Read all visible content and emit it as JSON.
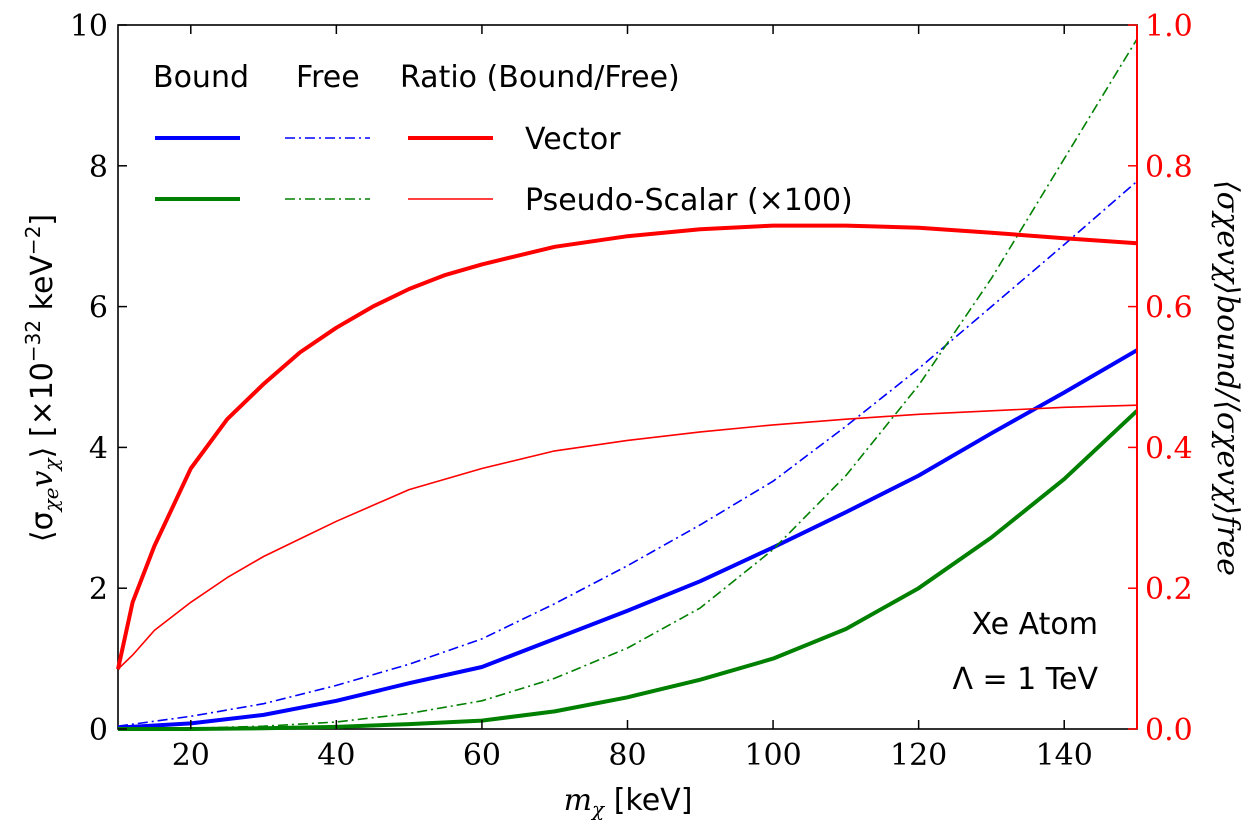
{
  "chart_data": {
    "type": "line",
    "x_axis": {
      "label_symbol": "m",
      "label_sub": "χ",
      "label_unit": " [keV]",
      "range": [
        10,
        150
      ],
      "ticks": [
        20,
        40,
        60,
        80,
        100,
        120,
        140
      ]
    },
    "y_left_axis": {
      "label_prefix": "⟨σ",
      "label_sub1": "χe",
      "label_mid": "v",
      "label_sub2": "χ",
      "label_suffix": "⟩ [×10",
      "label_exp": "−32",
      "label_unit": " keV",
      "label_exp2": "−2",
      "label_close": "]",
      "range": [
        0,
        10
      ],
      "ticks": [
        0,
        2,
        4,
        6,
        8,
        10
      ]
    },
    "y_right_axis": {
      "label_text": "⟨σχevχ⟩bound/⟨σχevχ⟩free",
      "range": [
        0.0,
        1.0
      ],
      "ticks": [
        "0.0",
        "0.2",
        "0.4",
        "0.6",
        "0.8",
        "1.0"
      ],
      "color": "#ff0000"
    },
    "legend": {
      "placement": "top-left",
      "header_bound": "Bound",
      "header_free": "Free",
      "header_ratio": "Ratio (Bound/Free)",
      "row_vector": "Vector",
      "row_pseudo": "Pseudo-Scalar (×100)"
    },
    "annotation": {
      "line1": "Xe Atom",
      "line2": "Λ = 1 TeV"
    },
    "series": [
      {
        "key": "vector_bound",
        "axis": "left",
        "color": "#0000ff",
        "width": 4,
        "dash": "",
        "x": [
          10,
          20,
          30,
          40,
          50,
          60,
          70,
          80,
          90,
          100,
          110,
          120,
          130,
          140,
          150
        ],
        "y": [
          0.02,
          0.08,
          0.2,
          0.4,
          0.65,
          0.88,
          1.28,
          1.68,
          2.1,
          2.58,
          3.08,
          3.6,
          4.2,
          4.78,
          5.38
        ]
      },
      {
        "key": "vector_free",
        "axis": "left",
        "color": "#0000ff",
        "width": 1.6,
        "dash": "10,4,2,4",
        "x": [
          10,
          20,
          30,
          40,
          50,
          60,
          70,
          80,
          90,
          100,
          110,
          120,
          130,
          140,
          150
        ],
        "y": [
          0.04,
          0.18,
          0.36,
          0.62,
          0.92,
          1.28,
          1.78,
          2.32,
          2.9,
          3.52,
          4.3,
          5.12,
          6.0,
          6.88,
          7.78
        ]
      },
      {
        "key": "pseudo_bound",
        "axis": "left",
        "color": "#008000",
        "width": 4,
        "dash": "",
        "x": [
          10,
          20,
          30,
          40,
          50,
          60,
          70,
          80,
          90,
          100,
          110,
          120,
          130,
          140,
          150
        ],
        "y": [
          0.0,
          0.0,
          0.01,
          0.03,
          0.07,
          0.12,
          0.25,
          0.45,
          0.7,
          1.0,
          1.42,
          2.0,
          2.72,
          3.55,
          4.52
        ]
      },
      {
        "key": "pseudo_free",
        "axis": "left",
        "color": "#008000",
        "width": 1.6,
        "dash": "10,4,2,4",
        "x": [
          10,
          20,
          30,
          40,
          50,
          60,
          70,
          80,
          90,
          100,
          110,
          120,
          130,
          140,
          150
        ],
        "y": [
          0.0,
          0.01,
          0.04,
          0.1,
          0.22,
          0.4,
          0.72,
          1.15,
          1.72,
          2.55,
          3.6,
          4.88,
          6.4,
          8.1,
          9.8
        ]
      },
      {
        "key": "vector_ratio",
        "axis": "right",
        "color": "#ff0000",
        "width": 4,
        "dash": "",
        "x": [
          10,
          12,
          15,
          20,
          25,
          30,
          35,
          40,
          45,
          50,
          55,
          60,
          70,
          80,
          90,
          100,
          110,
          120,
          130,
          140,
          150
        ],
        "y": [
          0.085,
          0.18,
          0.26,
          0.37,
          0.44,
          0.49,
          0.535,
          0.57,
          0.6,
          0.625,
          0.645,
          0.66,
          0.685,
          0.7,
          0.71,
          0.715,
          0.715,
          0.712,
          0.705,
          0.697,
          0.69
        ]
      },
      {
        "key": "pseudo_ratio",
        "axis": "right",
        "color": "#ff0000",
        "width": 1.6,
        "dash": "",
        "x": [
          10,
          12,
          15,
          20,
          25,
          30,
          35,
          40,
          50,
          60,
          70,
          80,
          90,
          100,
          110,
          120,
          130,
          140,
          150
        ],
        "y": [
          0.085,
          0.105,
          0.14,
          0.18,
          0.215,
          0.245,
          0.27,
          0.295,
          0.34,
          0.37,
          0.395,
          0.41,
          0.422,
          0.432,
          0.44,
          0.447,
          0.452,
          0.457,
          0.46
        ]
      }
    ]
  }
}
